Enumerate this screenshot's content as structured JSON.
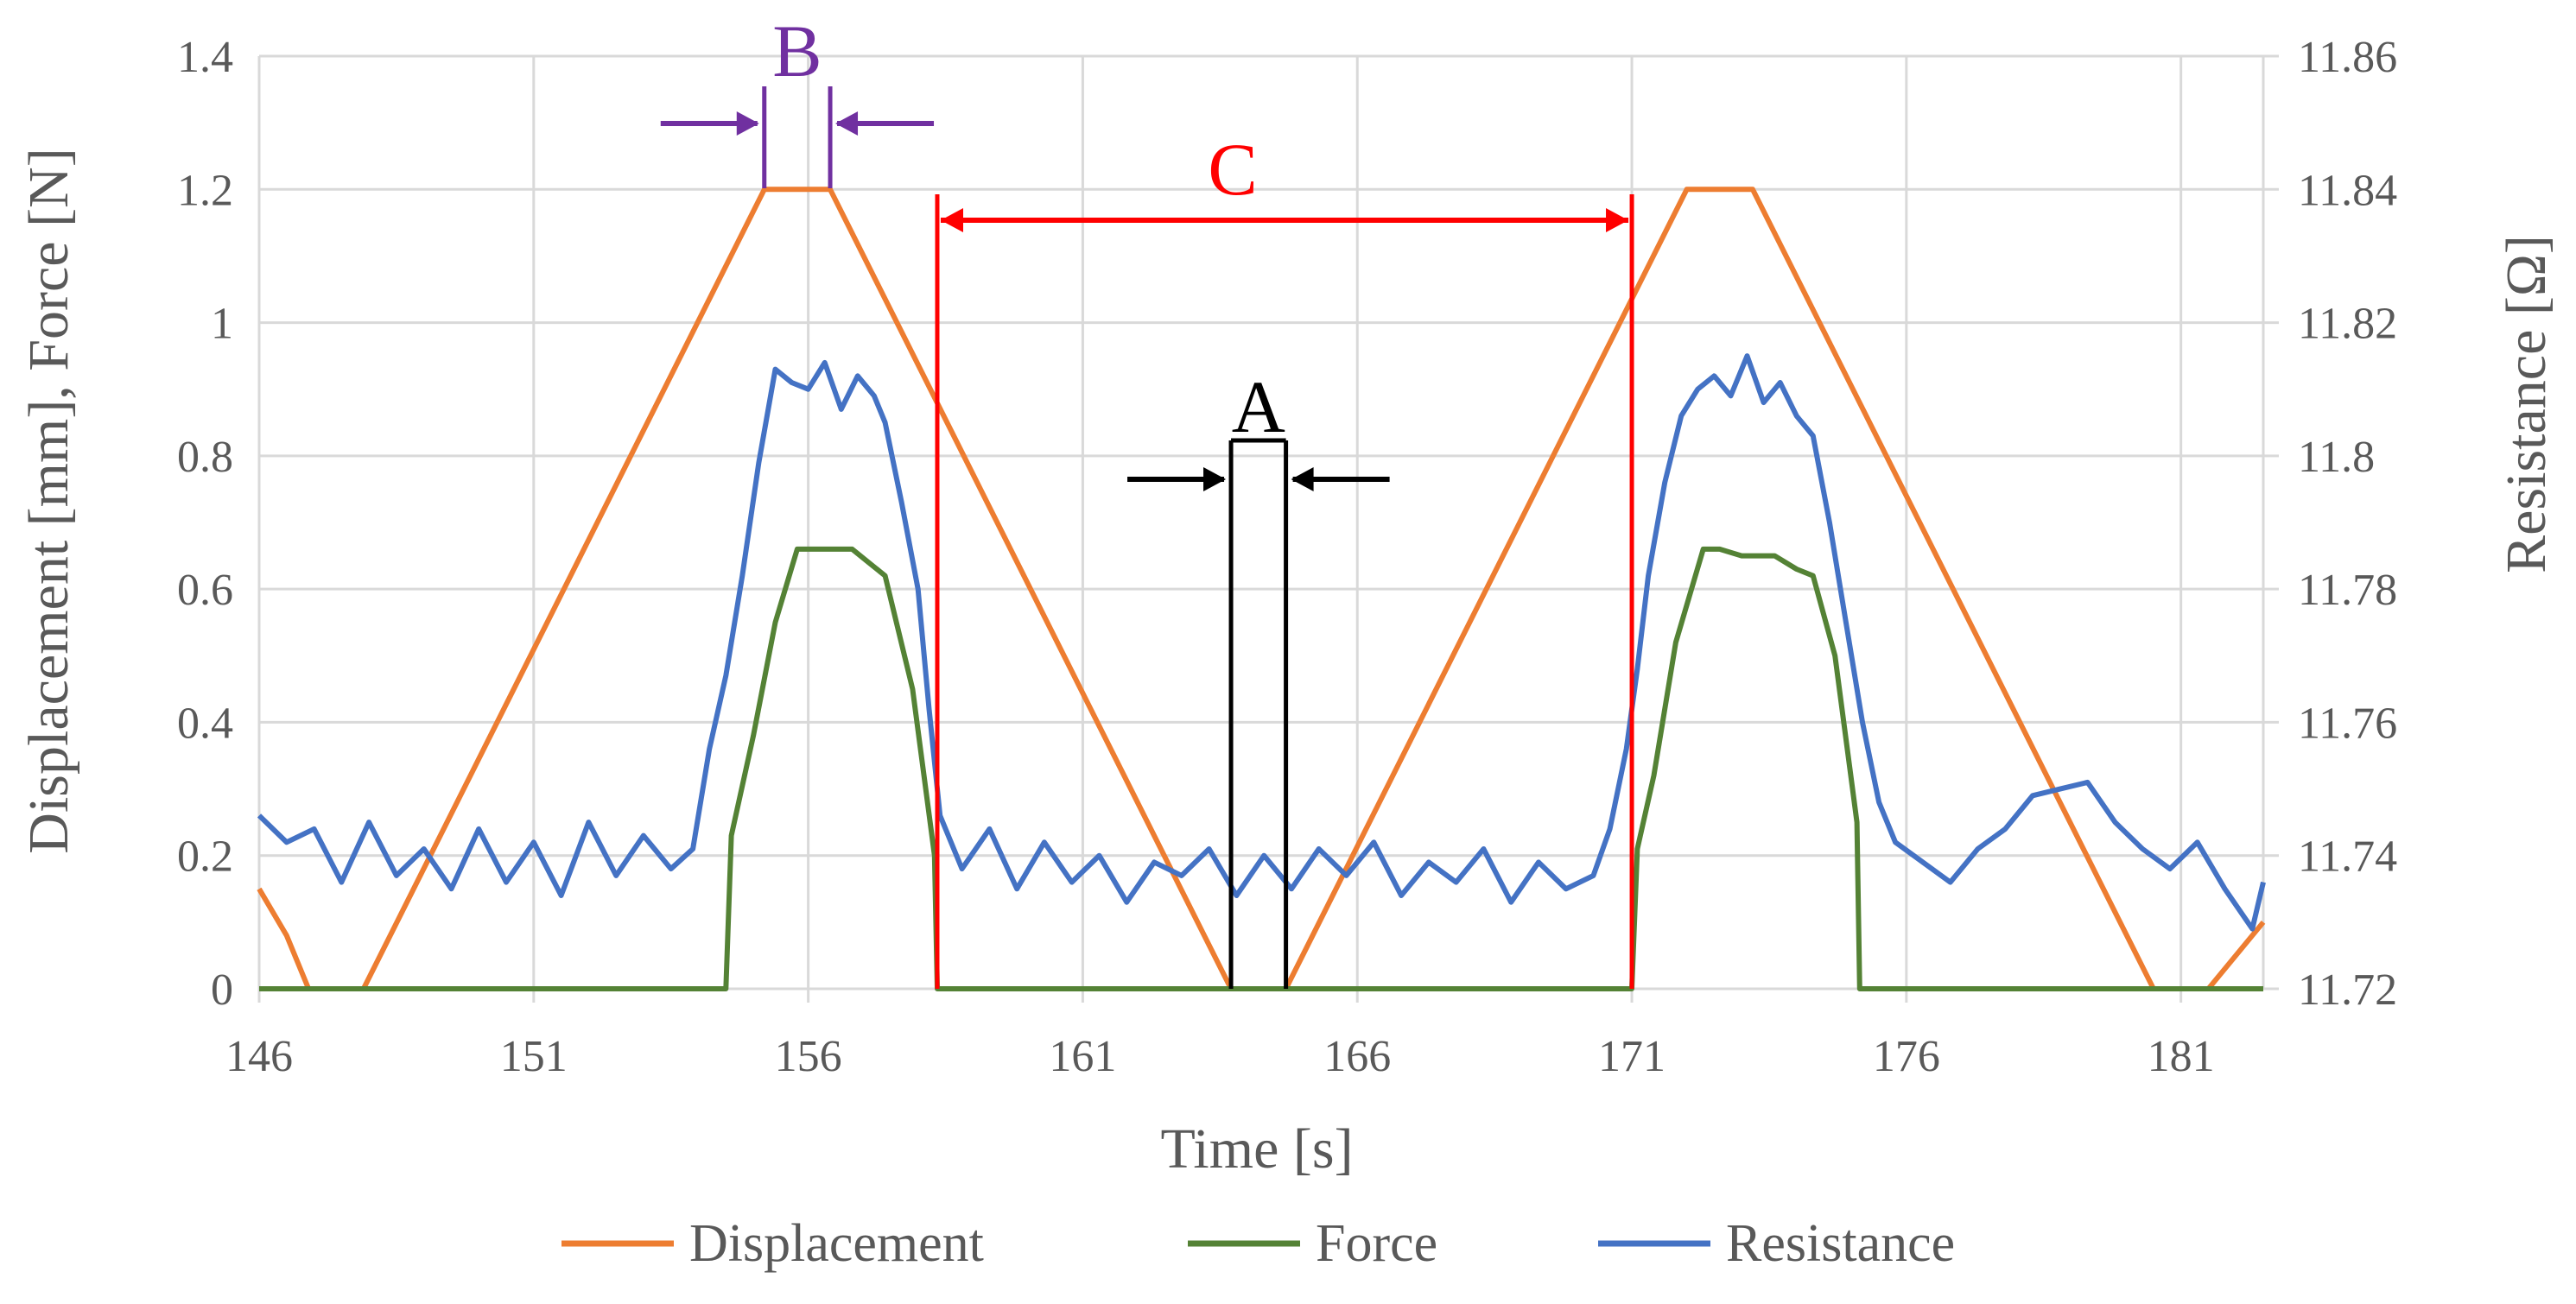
{
  "chart_data": {
    "type": "line",
    "title": "",
    "xlabel": "Time [s]",
    "ylabel_left": "Displacement [mm], Force [N]",
    "ylabel_right": "Resistance [Ω]",
    "xlim": [
      146,
      182.5
    ],
    "ylim_left": [
      0,
      1.4
    ],
    "ylim_right": [
      11.72,
      11.86
    ],
    "x_ticks": [
      "146",
      "151",
      "156",
      "161",
      "166",
      "171",
      "176",
      "181"
    ],
    "y_left_ticks": [
      "0",
      "0.2",
      "0.4",
      "0.6",
      "0.8",
      "1",
      "1.2",
      "1.4"
    ],
    "y_right_ticks": [
      "11.72",
      "11.74",
      "11.76",
      "11.78",
      "11.8",
      "11.82",
      "11.84",
      "11.86"
    ],
    "grid": true,
    "legend": {
      "position": "bottom",
      "entries": [
        "Displacement",
        "Force",
        "Resistance"
      ]
    },
    "colors": {
      "displacement": "#ED7D31",
      "force": "#548235",
      "resistance": "#4472C4",
      "grid": "#D9D9D9",
      "annoA": "#000000",
      "annoB": "#7030A0",
      "annoC": "#FF0000"
    },
    "series": [
      {
        "name": "Displacement",
        "axis": "left",
        "x": [
          146,
          146.5,
          146.9,
          147.9,
          155.2,
          156.4,
          163.7,
          164.7,
          172.0,
          173.2,
          180.5,
          181.5,
          182.5
        ],
        "y": [
          0.15,
          0.08,
          0,
          0,
          1.2,
          1.2,
          0,
          0,
          1.2,
          1.2,
          0,
          0,
          0.1
        ]
      },
      {
        "name": "Force",
        "axis": "left",
        "x": [
          146,
          154.5,
          154.6,
          155.0,
          155.4,
          155.8,
          156.3,
          156.8,
          157.1,
          157.4,
          157.9,
          158.3,
          158.35,
          171.0,
          171.1,
          171.4,
          171.8,
          172.3,
          172.6,
          173.0,
          173.6,
          174.0,
          174.3,
          174.7,
          175.1,
          175.15,
          182.5
        ],
        "y": [
          0,
          0,
          0.23,
          0.38,
          0.55,
          0.66,
          0.66,
          0.66,
          0.64,
          0.62,
          0.45,
          0.2,
          0,
          0,
          0.21,
          0.32,
          0.52,
          0.66,
          0.66,
          0.65,
          0.65,
          0.63,
          0.62,
          0.5,
          0.25,
          0,
          0
        ]
      },
      {
        "name": "Resistance",
        "axis": "right",
        "x": [
          146,
          146.5,
          147,
          147.5,
          148,
          148.5,
          149,
          149.5,
          150,
          150.5,
          151,
          151.5,
          152,
          152.5,
          153,
          153.5,
          153.9,
          154.2,
          154.5,
          154.8,
          155.1,
          155.4,
          155.7,
          156.0,
          156.3,
          156.6,
          156.9,
          157.2,
          157.4,
          157.7,
          158.0,
          158.2,
          158.4,
          158.8,
          159.3,
          159.8,
          160.3,
          160.8,
          161.3,
          161.8,
          162.3,
          162.8,
          163.3,
          163.8,
          164.3,
          164.8,
          165.3,
          165.8,
          166.3,
          166.8,
          167.3,
          167.8,
          168.3,
          168.8,
          169.3,
          169.8,
          170.3,
          170.6,
          170.9,
          171.1,
          171.3,
          171.6,
          171.9,
          172.2,
          172.5,
          172.8,
          173.1,
          173.4,
          173.7,
          174.0,
          174.3,
          174.6,
          174.9,
          175.2,
          175.5,
          175.8,
          176.3,
          176.8,
          177.3,
          177.8,
          178.3,
          178.8,
          179.3,
          179.8,
          180.3,
          180.8,
          181.3,
          181.8,
          182.3,
          182.5
        ],
        "y": [
          11.746,
          11.742,
          11.744,
          11.736,
          11.745,
          11.737,
          11.741,
          11.735,
          11.744,
          11.736,
          11.742,
          11.734,
          11.745,
          11.737,
          11.743,
          11.738,
          11.741,
          11.756,
          11.767,
          11.782,
          11.799,
          11.813,
          11.811,
          11.81,
          11.814,
          11.807,
          11.812,
          11.809,
          11.805,
          11.793,
          11.78,
          11.762,
          11.746,
          11.738,
          11.744,
          11.735,
          11.742,
          11.736,
          11.74,
          11.733,
          11.739,
          11.737,
          11.741,
          11.734,
          11.74,
          11.735,
          11.741,
          11.737,
          11.742,
          11.734,
          11.739,
          11.736,
          11.741,
          11.733,
          11.739,
          11.735,
          11.737,
          11.744,
          11.756,
          11.768,
          11.782,
          11.796,
          11.806,
          11.81,
          11.812,
          11.809,
          11.815,
          11.808,
          11.811,
          11.806,
          11.803,
          11.79,
          11.775,
          11.76,
          11.748,
          11.742,
          11.739,
          11.736,
          11.741,
          11.744,
          11.749,
          11.75,
          11.751,
          11.745,
          11.741,
          11.738,
          11.742,
          11.735,
          11.729,
          11.736
        ]
      }
    ],
    "annotations": [
      {
        "label": "A",
        "x1": 163.7,
        "x2": 164.7,
        "color": "annoA"
      },
      {
        "label": "B",
        "x1": 155.2,
        "x2": 156.4,
        "color": "annoB"
      },
      {
        "label": "C",
        "x1": 158.35,
        "x2": 171.0,
        "color": "annoC"
      }
    ]
  }
}
